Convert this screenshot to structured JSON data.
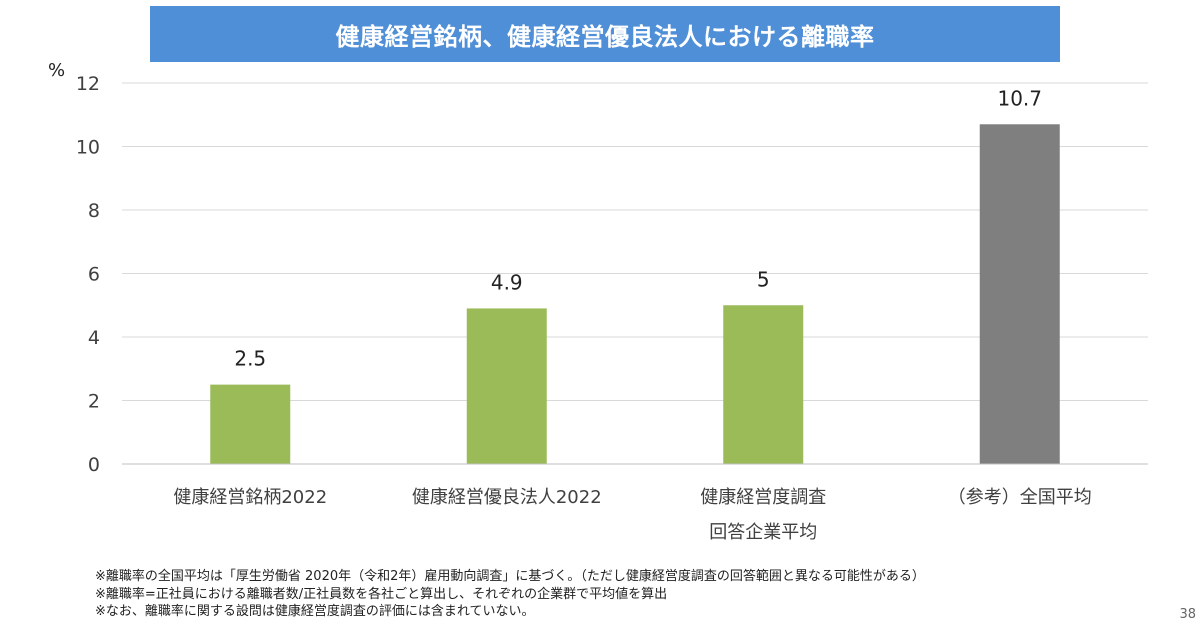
{
  "chart_data": {
    "type": "bar",
    "title": "健康経営銘柄、健康経営優良法人における離職率",
    "ylabel": "%",
    "xlabel": "",
    "ylim": [
      0,
      12
    ],
    "yticks": [
      0,
      2,
      4,
      6,
      8,
      10,
      12
    ],
    "grid": true,
    "categories": [
      [
        "健康経営銘柄2022"
      ],
      [
        "健康経営優良法人2022"
      ],
      [
        "健康経営度調査",
        "回答企業平均"
      ],
      [
        "（参考）全国平均"
      ]
    ],
    "values": [
      2.5,
      4.9,
      5,
      10.7
    ],
    "data_labels": [
      "2.5",
      "4.9",
      "5",
      "10.7"
    ],
    "bar_colors": [
      "#9bbb59",
      "#9bbb59",
      "#9bbb59",
      "#7f7f7f"
    ]
  },
  "notes": [
    "※離職率の全国平均は「厚生労働省 2020年（令和2年）雇用動向調査」に基づく。（ただし健康経営度調査の回答範囲と異なる可能性がある）",
    "※離職率=正社員における離職者数/正社員数を各社ごと算出し、それぞれの企業群で平均値を算出",
    "※なお、離職率に関する設問は健康経営度調査の評価には含まれていない。"
  ],
  "page_number": "38",
  "colors": {
    "title_bg": "#4f8fd8",
    "bar_green": "#9bbb59",
    "bar_gray": "#7f7f7f",
    "grid": "#d9d9d9"
  }
}
